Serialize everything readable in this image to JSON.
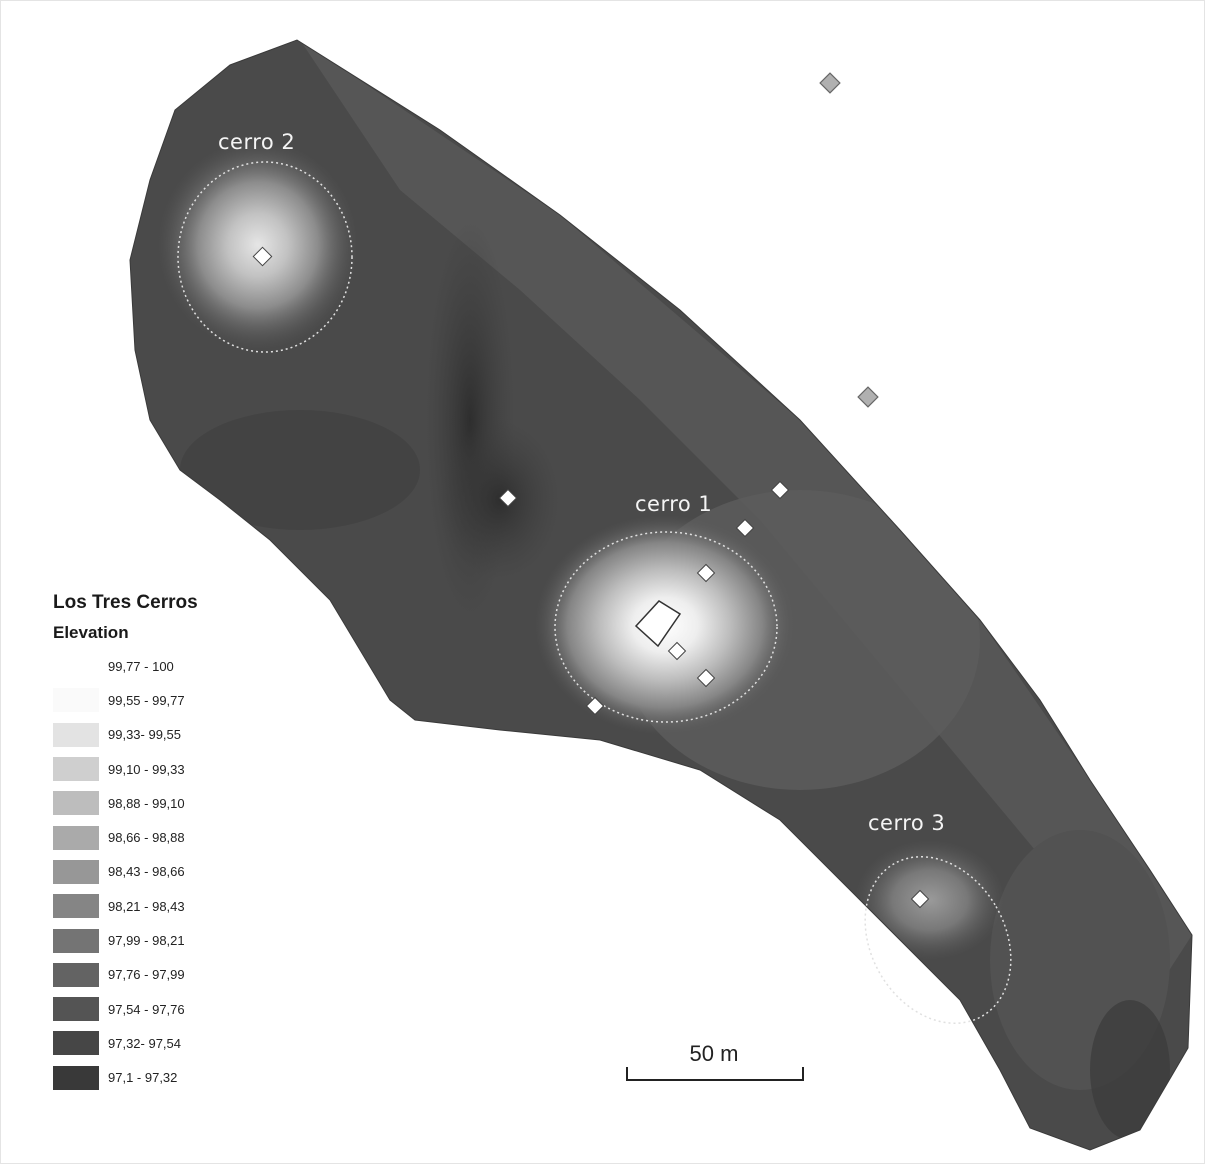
{
  "hills": [
    {
      "id": "cerro-2",
      "label": "cerro 2"
    },
    {
      "id": "cerro-1",
      "label": "cerro 1"
    },
    {
      "id": "cerro-3",
      "label": "cerro 3"
    }
  ],
  "legend": {
    "title": "Los Tres Cerros",
    "subtitle": "Elevation",
    "classes": [
      {
        "label": "99,77 - 100",
        "color": "#ffffff"
      },
      {
        "label": "99,55 - 99,77",
        "color": "#fafafa"
      },
      {
        "label": "99,33- 99,55",
        "color": "#e3e3e3"
      },
      {
        "label": "99,10 - 99,33",
        "color": "#cfcfcf"
      },
      {
        "label": "98,88 - 99,10",
        "color": "#bdbdbd"
      },
      {
        "label": "98,66 - 98,88",
        "color": "#aaaaaa"
      },
      {
        "label": "98,43 - 98,66",
        "color": "#979797"
      },
      {
        "label": "98,21 - 98,43",
        "color": "#858585"
      },
      {
        "label": "97,99 - 98,21",
        "color": "#747474"
      },
      {
        "label": "97,76 - 97,99",
        "color": "#636363"
      },
      {
        "label": "97,54 - 97,76",
        "color": "#545454"
      },
      {
        "label": "97,32- 97,54",
        "color": "#464646"
      },
      {
        "label": "97,1 - 97,32",
        "color": "#393939"
      }
    ]
  },
  "scale_bar": {
    "label": "50 m"
  }
}
